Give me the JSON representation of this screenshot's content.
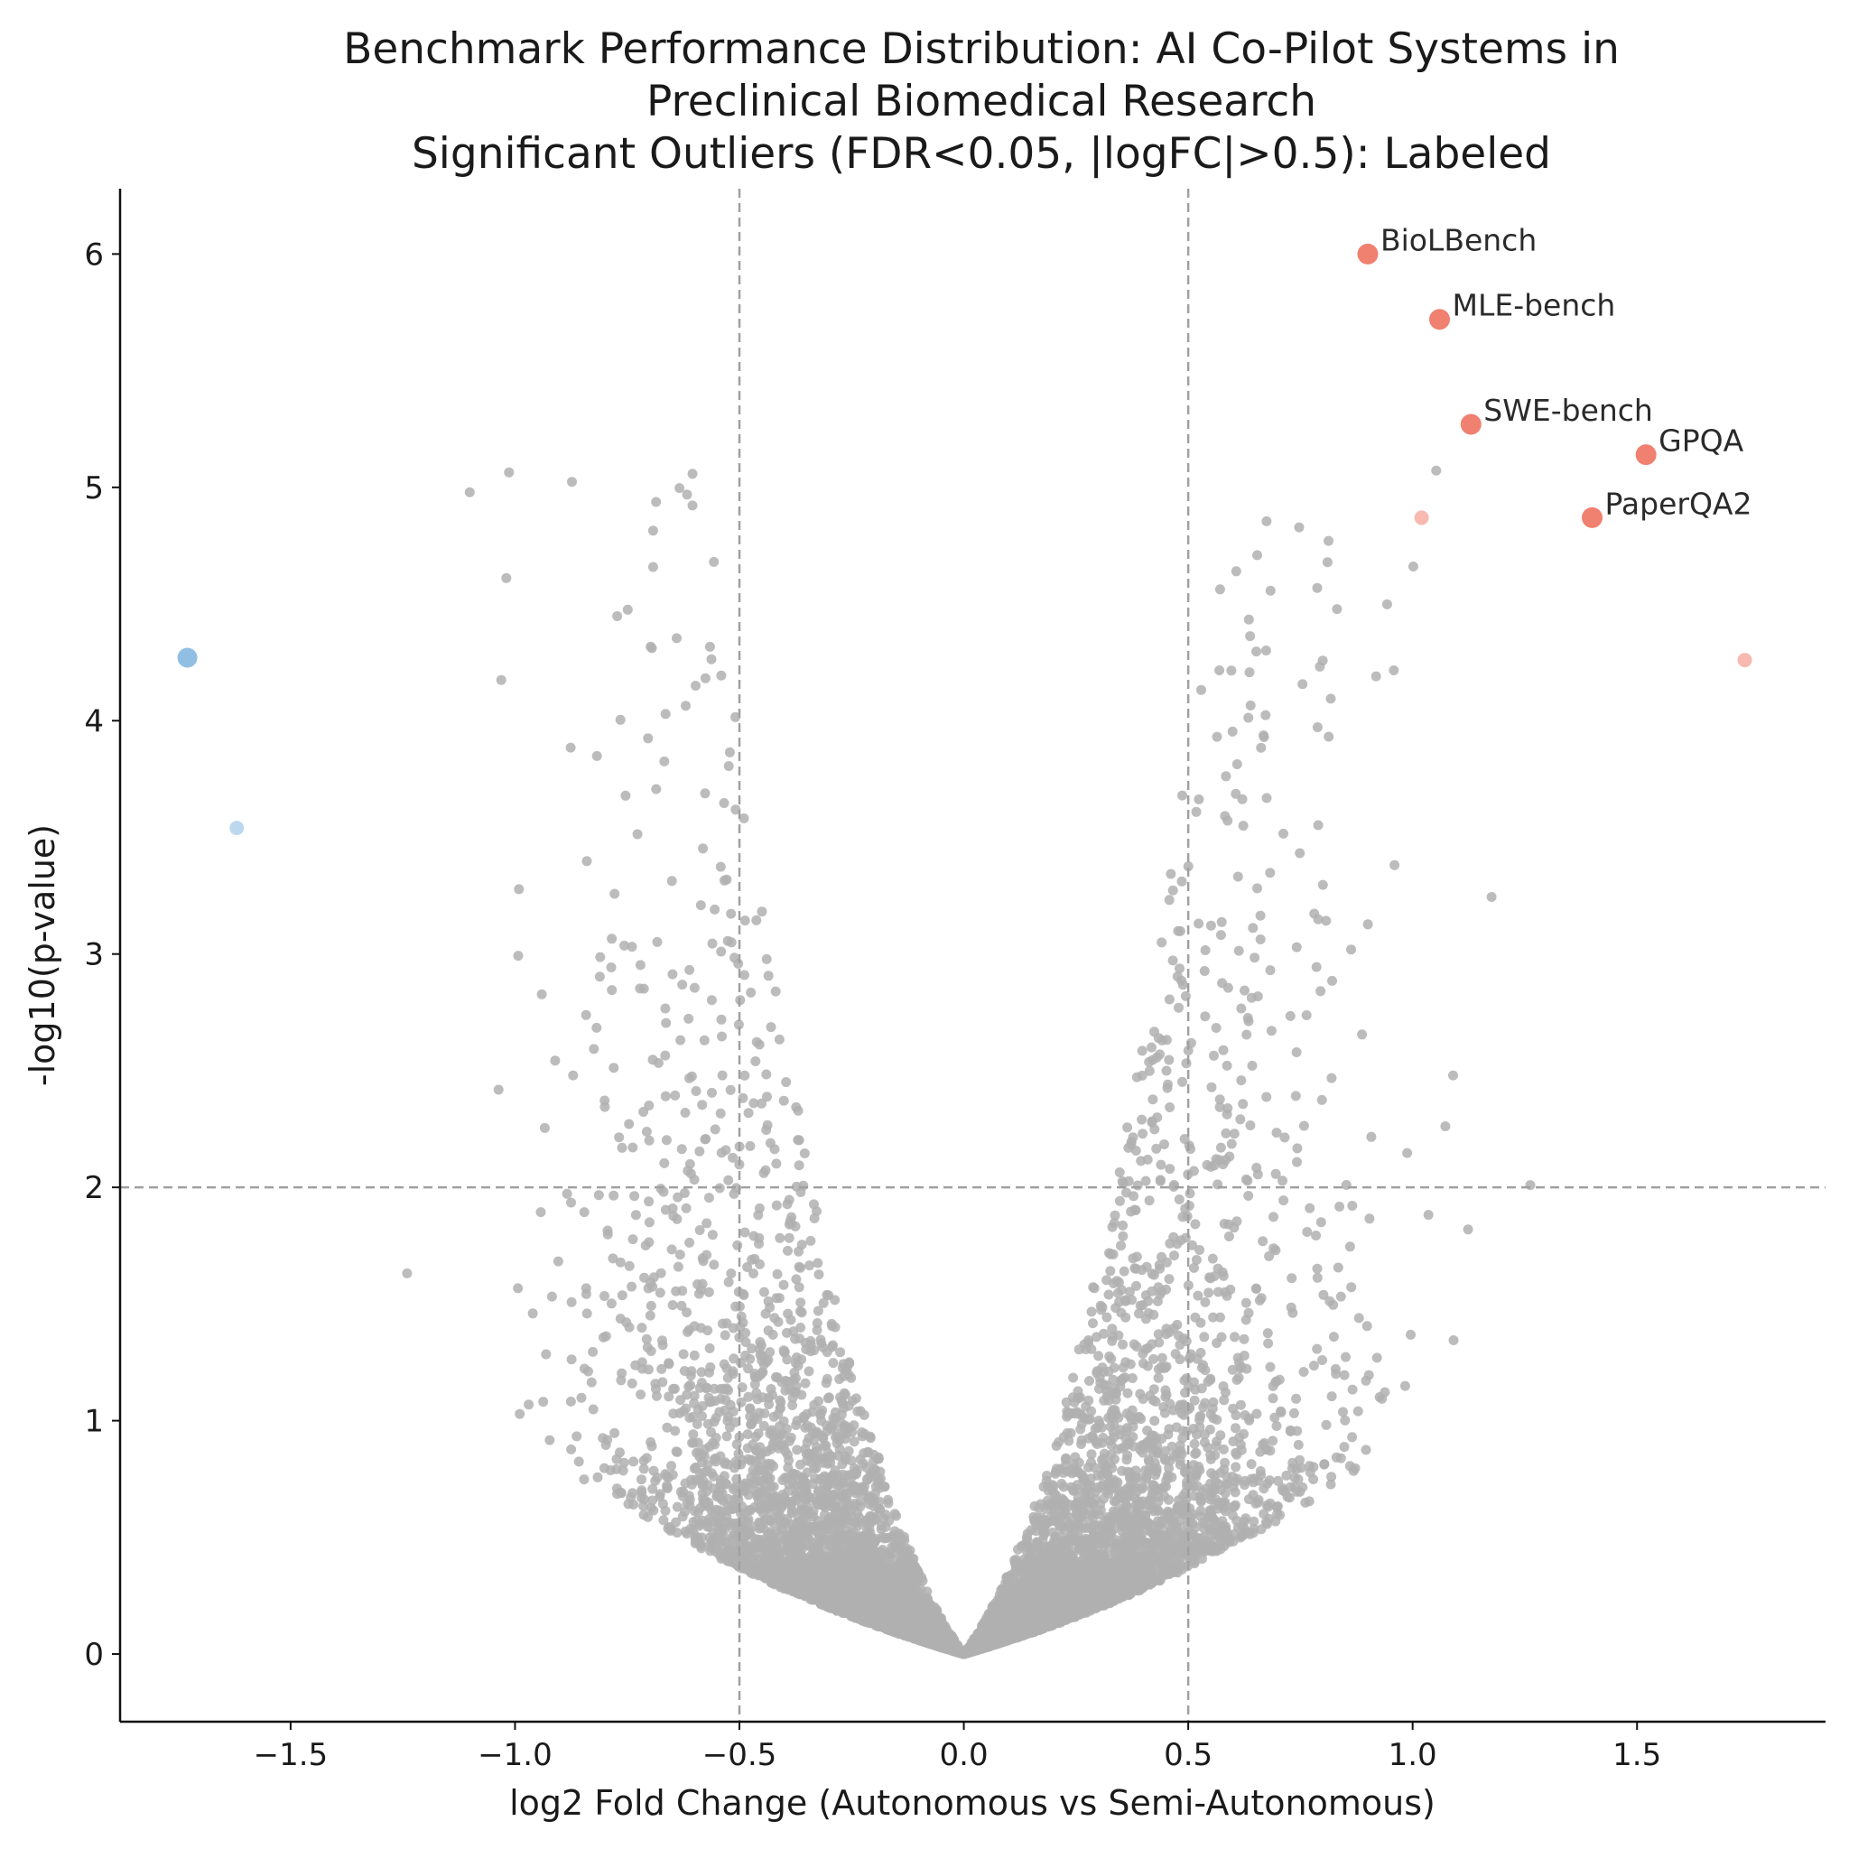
{
  "chart_data": {
    "type": "scatter",
    "title_lines": [
      "Benchmark Performance Distribution: AI Co-Pilot Systems in",
      "Preclinical Biomedical Research",
      "Significant Outliers (FDR<0.05, |logFC|>0.5): Labeled"
    ],
    "xlabel": "log2 Fold Change (Autonomous vs Semi-Autonomous)",
    "ylabel": "-log10(p-value)",
    "xlim": [
      -1.88,
      1.92
    ],
    "ylim": [
      -0.29,
      6.28
    ],
    "xticks": [
      -1.5,
      -1.0,
      -0.5,
      0.0,
      0.5,
      1.0,
      1.5
    ],
    "xtick_labels": [
      "−1.5",
      "−1.0",
      "−0.5",
      "0.0",
      "0.5",
      "1.0",
      "1.5"
    ],
    "yticks": [
      0,
      1,
      2,
      3,
      4,
      5,
      6
    ],
    "ytick_labels": [
      "0",
      "1",
      "2",
      "3",
      "4",
      "5",
      "6"
    ],
    "thresholds": {
      "logfc": [
        -0.5,
        0.5
      ],
      "neg_log10_p": 2
    },
    "grid": false,
    "legend": "none",
    "colors": {
      "background_points": "#b0b0b0",
      "up": "#f08070",
      "down": "#85b8e0",
      "threshold_lines": "#a0a0a0"
    },
    "labeled_points": [
      {
        "label": "BioLBench",
        "x": 0.9,
        "y": 6.0
      },
      {
        "label": "MLE-bench",
        "x": 1.06,
        "y": 5.72
      },
      {
        "label": "SWE-bench",
        "x": 1.13,
        "y": 5.27
      },
      {
        "label": "GPQA",
        "x": 1.52,
        "y": 5.14
      },
      {
        "label": "PaperQA2",
        "x": 1.4,
        "y": 4.87
      }
    ],
    "other_significant_points": [
      {
        "x": -1.73,
        "y": 4.27,
        "direction": "down"
      },
      {
        "x": -1.62,
        "y": 3.54,
        "direction": "down"
      },
      {
        "x": 1.02,
        "y": 4.87,
        "direction": "up"
      },
      {
        "x": 1.74,
        "y": 4.26,
        "direction": "up"
      }
    ]
  }
}
